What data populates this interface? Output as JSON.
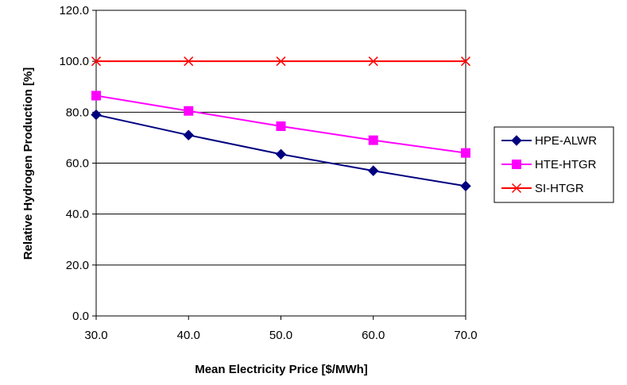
{
  "chart_data": {
    "type": "line",
    "title": "",
    "xlabel": "Mean Electricity Price [$/MWh]",
    "ylabel": "Relative Hydrogen Production [%]",
    "x": [
      30.0,
      40.0,
      50.0,
      60.0,
      70.0
    ],
    "x_tick_labels": [
      "30.0",
      "40.0",
      "50.0",
      "60.0",
      "70.0"
    ],
    "y_tick_labels": [
      "0.0",
      "20.0",
      "40.0",
      "60.0",
      "80.0",
      "100.0",
      "120.0"
    ],
    "y_ticks": [
      0,
      20,
      40,
      60,
      80,
      100,
      120
    ],
    "xlim": [
      30,
      70
    ],
    "ylim": [
      0,
      120
    ],
    "grid": "horizontal",
    "legend_position": "right",
    "series": [
      {
        "name": "HPE-ALWR",
        "values": [
          79,
          71,
          63.5,
          57,
          51
        ],
        "color": "#000080",
        "marker": "diamond"
      },
      {
        "name": "HTE-HTGR",
        "values": [
          86.5,
          80.5,
          74.5,
          69,
          64
        ],
        "color": "#ff00ff",
        "marker": "square"
      },
      {
        "name": "SI-HTGR",
        "values": [
          100,
          100,
          100,
          100,
          100
        ],
        "color": "#ff0000",
        "marker": "x"
      }
    ]
  }
}
